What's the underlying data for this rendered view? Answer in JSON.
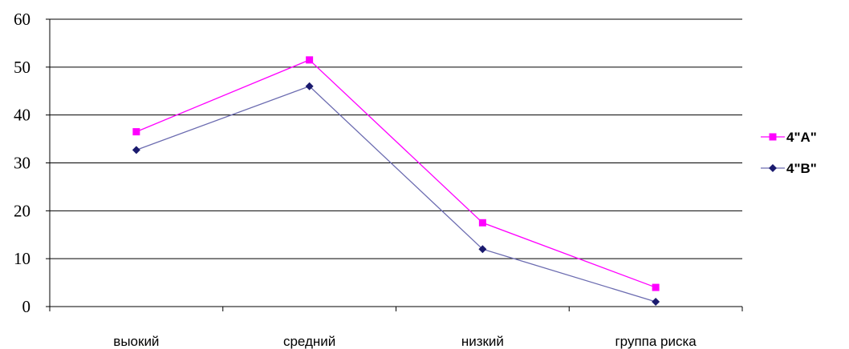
{
  "chart_data": {
    "type": "line",
    "categories": [
      "выокий",
      "средний",
      "низкий",
      "группа риска"
    ],
    "series": [
      {
        "name": "4\"А\"",
        "values": [
          36.5,
          51.5,
          17.5,
          4
        ],
        "color": "#ff00ff",
        "marker": "square"
      },
      {
        "name": "4\"В\"",
        "values": [
          32.7,
          46,
          12,
          1
        ],
        "color": "#1a1a6e",
        "line_color": "#6b6bb0",
        "marker": "diamond"
      }
    ],
    "title": "",
    "xlabel": "",
    "ylabel": "",
    "ylim": [
      0,
      60
    ],
    "yticks": [
      "0",
      "10",
      "20",
      "30",
      "40",
      "50",
      "60"
    ],
    "grid": true,
    "legend": "right"
  }
}
